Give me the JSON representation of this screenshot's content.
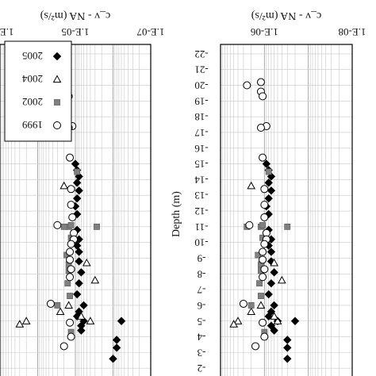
{
  "chart_data": [
    {
      "type": "scatter",
      "title": "",
      "xlabel": "c_v - NA (m²/s)",
      "ylabel": "Depth (m)",
      "xscale": "log",
      "xlim": [
        1e-07,
        0.001
      ],
      "ylim": [
        0,
        22
      ],
      "y_inverted": true,
      "x_tick_labels": [
        "1.E-07",
        "1.E-05",
        "1.E-03"
      ],
      "x_tick_values": [
        1e-07,
        1e-05,
        0.001
      ],
      "y_tick_labels": [
        "-2",
        "-3",
        "-4",
        "-5",
        "-6",
        "-7",
        "-8",
        "-9",
        "-10",
        "-11",
        "-12",
        "-13",
        "-14",
        "-15",
        "-16",
        "-17",
        "-18",
        "-19",
        "-20",
        "-21",
        "-22"
      ],
      "y_tick_values": [
        2,
        3,
        4,
        5,
        6,
        7,
        8,
        9,
        10,
        11,
        12,
        13,
        14,
        15,
        16,
        17,
        18,
        19,
        20,
        21,
        22
      ],
      "grid": true,
      "legend_position": "top-left",
      "series": [
        {
          "name": "2005",
          "marker": "diamond-filled",
          "color": "#000000",
          "points": [
            [
              1e-06,
              2.6
            ],
            [
              8e-07,
              3.3
            ],
            [
              8e-07,
              3.8
            ],
            [
              7e-06,
              4.4
            ],
            [
              7e-06,
              4.7
            ],
            [
              6e-06,
              5.0
            ],
            [
              9e-06,
              5.3
            ],
            [
              8e-06,
              5.6
            ],
            [
              6e-06,
              6.0
            ],
            [
              9e-06,
              6.7
            ],
            [
              8e-06,
              7.4
            ],
            [
              7e-06,
              8.1
            ],
            [
              8e-06,
              8.8
            ],
            [
              8e-06,
              9.4
            ],
            [
              9e-06,
              9.8
            ],
            [
              8e-06,
              10.2
            ],
            [
              9e-06,
              10.8
            ],
            [
              9e-06,
              11.8
            ],
            [
              1e-05,
              12.3
            ],
            [
              9e-06,
              12.8
            ],
            [
              8e-06,
              13.3
            ],
            [
              9e-06,
              13.8
            ],
            [
              8e-06,
              14.2
            ],
            [
              9e-06,
              14.6
            ],
            [
              1e-05,
              15.0
            ],
            [
              6e-07,
              5.0
            ]
          ]
        },
        {
          "name": "2004",
          "marker": "triangle-open",
          "color": "#000000",
          "points": [
            [
              4e-06,
              5.0
            ],
            [
              7e-06,
              5.3
            ],
            [
              0.0002,
              5.0
            ],
            [
              0.0003,
              4.8
            ],
            [
              1.5e-05,
              6.0
            ],
            [
              3e-06,
              7.6
            ],
            [
              2e-05,
              13.6
            ],
            [
              2.5e-05,
              5.6
            ],
            [
              5e-06,
              8.7
            ]
          ]
        },
        {
          "name": "2002",
          "marker": "square-filled",
          "color": "#808080",
          "points": [
            [
              1.3e-05,
              4.3
            ],
            [
              3e-05,
              6.0
            ],
            [
              1.4e-05,
              6.6
            ],
            [
              1.6e-05,
              7.4
            ],
            [
              1.5e-05,
              8.2
            ],
            [
              1.5e-05,
              8.6
            ],
            [
              1.7e-05,
              9.2
            ],
            [
              1.5e-05,
              11.0
            ],
            [
              2e-05,
              11.0
            ],
            [
              1.3e-05,
              11.1
            ],
            [
              2.7e-06,
              11.0
            ],
            [
              9e-06,
              14.5
            ],
            [
              1.3e-05,
              10.3
            ]
          ]
        },
        {
          "name": "1999",
          "marker": "circle-open",
          "color": "#000000",
          "points": [
            [
              1.6e-05,
              20.2
            ],
            [
              1.6e-05,
              19.6
            ],
            [
              1.5e-05,
              19.3
            ],
            [
              3.5e-05,
              20.0
            ],
            [
              1.2e-05,
              17.4
            ],
            [
              1.5e-05,
              17.3
            ],
            [
              1.4e-05,
              15.4
            ],
            [
              1.3e-05,
              13.4
            ],
            [
              1.3e-05,
              12.4
            ],
            [
              1.1e-05,
              10.6
            ],
            [
              1.1e-05,
              10.2
            ],
            [
              1.3e-05,
              9.9
            ],
            [
              1.4e-05,
              9.4
            ],
            [
              3e-05,
              11.1
            ],
            [
              1.2e-05,
              11.6
            ],
            [
              1.3e-05,
              8.3
            ],
            [
              1.4e-05,
              7.8
            ],
            [
              1.4e-05,
              8.9
            ],
            [
              4.5e-05,
              6.1
            ],
            [
              1.4e-05,
              4.9
            ],
            [
              2e-05,
              3.4
            ],
            [
              1.3e-05,
              4.0
            ]
          ]
        }
      ]
    },
    {
      "type": "scatter",
      "title": "",
      "xlabel": "c_v - NA (m²/s)",
      "ylabel": "Depth (m)",
      "xscale": "log",
      "xlim": [
        1e-08,
        1e-05
      ],
      "ylim": [
        0,
        22
      ],
      "y_inverted": true,
      "x_tick_labels": [
        "1.E-08",
        "1.E-06"
      ],
      "x_tick_values": [
        1e-08,
        1e-06
      ],
      "y_tick_labels": [
        "-2",
        "-3",
        "-4",
        "-5",
        "-6",
        "-7",
        "-8",
        "-9",
        "-10",
        "-11",
        "-12",
        "-13",
        "-14",
        "-15",
        "-16",
        "-17",
        "-18",
        "-19",
        "-20",
        "-21",
        "-22"
      ],
      "y_tick_values": [
        2,
        3,
        4,
        5,
        6,
        7,
        8,
        9,
        10,
        11,
        12,
        13,
        14,
        15,
        16,
        17,
        18,
        19,
        20,
        21,
        22
      ],
      "grid": true,
      "series": [
        {
          "name": "2005",
          "marker": "diamond-filled",
          "color": "#000000",
          "points": [
            [
              3e-07,
              2.6
            ],
            [
              3e-07,
              3.3
            ],
            [
              3e-07,
              3.8
            ],
            [
              6e-07,
              4.4
            ],
            [
              7e-07,
              4.7
            ],
            [
              5e-07,
              5.0
            ],
            [
              8e-07,
              5.3
            ],
            [
              7e-07,
              5.6
            ],
            [
              6e-07,
              6.0
            ],
            [
              8e-07,
              6.7
            ],
            [
              7e-07,
              7.4
            ],
            [
              6e-07,
              8.1
            ],
            [
              7e-07,
              8.8
            ],
            [
              7e-07,
              9.4
            ],
            [
              8e-07,
              9.8
            ],
            [
              7e-07,
              10.2
            ],
            [
              8e-07,
              10.8
            ],
            [
              8e-07,
              11.8
            ],
            [
              9e-07,
              12.3
            ],
            [
              8e-07,
              12.8
            ],
            [
              7e-07,
              13.3
            ],
            [
              8e-07,
              13.8
            ],
            [
              7e-07,
              14.2
            ],
            [
              8e-07,
              14.6
            ],
            [
              9e-07,
              15.0
            ],
            [
              2e-07,
              5.0
            ]
          ]
        },
        {
          "name": "2004",
          "marker": "triangle-open",
          "color": "#000000",
          "points": [
            [
              5e-07,
              5.0
            ],
            [
              6e-07,
              5.3
            ],
            [
              4e-06,
              5.0
            ],
            [
              5e-06,
              4.8
            ],
            [
              1.2e-06,
              6.0
            ],
            [
              4e-07,
              7.6
            ],
            [
              2e-06,
              13.6
            ],
            [
              2e-06,
              5.6
            ],
            [
              6e-07,
              8.7
            ]
          ]
        },
        {
          "name": "2002",
          "marker": "square-filled",
          "color": "#808080",
          "points": [
            [
              1e-06,
              4.3
            ],
            [
              2e-06,
              6.0
            ],
            [
              1.2e-06,
              6.6
            ],
            [
              1.3e-06,
              7.4
            ],
            [
              1.2e-06,
              8.2
            ],
            [
              1.2e-06,
              8.6
            ],
            [
              1.4e-06,
              9.2
            ],
            [
              1.2e-06,
              11.0
            ],
            [
              2.5e-06,
              11.0
            ],
            [
              1.1e-06,
              11.1
            ],
            [
              3e-07,
              11.0
            ],
            [
              8e-07,
              14.5
            ],
            [
              1.1e-06,
              10.3
            ]
          ]
        },
        {
          "name": "1999",
          "marker": "circle-open",
          "color": "#000000",
          "points": [
            [
              1.2e-06,
              20.2
            ],
            [
              1.2e-06,
              19.6
            ],
            [
              1.1e-06,
              19.3
            ],
            [
              2.5e-06,
              20.0
            ],
            [
              9e-07,
              17.4
            ],
            [
              1.2e-06,
              17.3
            ],
            [
              1.1e-06,
              15.4
            ],
            [
              1e-06,
              13.4
            ],
            [
              1e-06,
              12.4
            ],
            [
              9e-07,
              10.6
            ],
            [
              9e-07,
              10.2
            ],
            [
              1e-06,
              9.9
            ],
            [
              1.1e-06,
              9.4
            ],
            [
              2.2e-06,
              11.1
            ],
            [
              1e-06,
              11.6
            ],
            [
              1e-06,
              8.3
            ],
            [
              1.1e-06,
              7.8
            ],
            [
              1.1e-06,
              8.9
            ],
            [
              3e-06,
              6.1
            ],
            [
              1.1e-06,
              4.9
            ],
            [
              1.6e-06,
              3.4
            ],
            [
              1e-06,
              4.0
            ]
          ]
        }
      ]
    }
  ]
}
